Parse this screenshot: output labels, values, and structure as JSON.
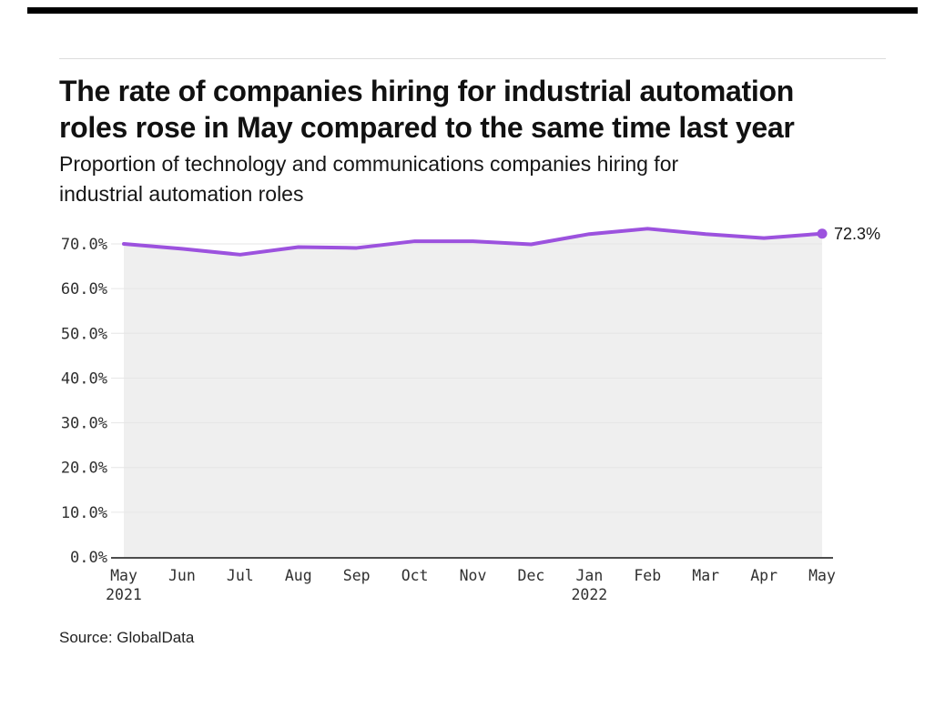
{
  "header": {
    "accent_bar_color": "#000000",
    "title_lines": [
      "The rate of companies hiring for industrial automation",
      "roles rose in May compared to the same time last year"
    ],
    "subtitle_lines": [
      "Proportion of technology and communications companies hiring for",
      "industrial automation roles"
    ]
  },
  "chart_data": {
    "type": "area",
    "title": "The rate of companies hiring for industrial automation roles rose in May compared to the same time last year",
    "subtitle": "Proportion of technology and communications companies hiring for industrial automation roles",
    "x_labels": [
      [
        "May",
        "2021"
      ],
      [
        "Jun"
      ],
      [
        "Jul"
      ],
      [
        "Aug"
      ],
      [
        "Sep"
      ],
      [
        "Oct"
      ],
      [
        "Nov"
      ],
      [
        "Dec"
      ],
      [
        "Jan",
        "2022"
      ],
      [
        "Feb"
      ],
      [
        "Mar"
      ],
      [
        "Apr"
      ],
      [
        "May"
      ]
    ],
    "values": [
      70.0,
      68.9,
      67.6,
      69.3,
      69.1,
      70.6,
      70.6,
      69.9,
      72.2,
      73.4,
      72.2,
      71.3,
      72.3
    ],
    "unit": "%",
    "ylim": [
      0,
      75
    ],
    "y_ticks": [
      {
        "value": 70,
        "label": "70.0%"
      },
      {
        "value": 60,
        "label": "60.0%"
      },
      {
        "value": 50,
        "label": "50.0%"
      },
      {
        "value": 40,
        "label": "40.0%"
      },
      {
        "value": 30,
        "label": "30.0%"
      },
      {
        "value": 20,
        "label": "20.0%"
      },
      {
        "value": 10,
        "label": "10.0%"
      },
      {
        "value": 0,
        "label": "0.0%"
      }
    ],
    "end_point_label": "72.3%",
    "grid": true,
    "legend": "none",
    "line_color": "#9c52de",
    "point_color": "#9c52de",
    "fill_color": "#efefef",
    "grid_color": "#e6e6e6",
    "axis_color": "#4d4d4d",
    "tick_color": "#303030",
    "end_label_color": "#161616"
  },
  "footer": {
    "source": "Source: GlobalData"
  }
}
